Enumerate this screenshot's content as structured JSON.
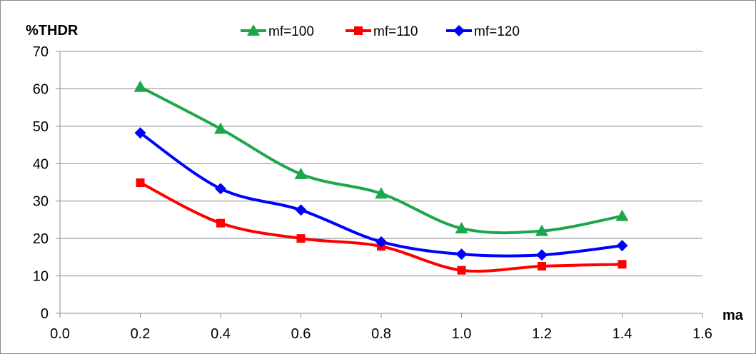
{
  "chart_data": {
    "type": "line",
    "title": "",
    "xlabel": "ma",
    "ylabel": "%THDR",
    "xlim": [
      0.0,
      1.6
    ],
    "ylim": [
      0,
      70
    ],
    "x_ticks": [
      "0.0",
      "0.2",
      "0.4",
      "0.6",
      "0.8",
      "1.0",
      "1.2",
      "1.4",
      "1.6"
    ],
    "y_ticks": [
      "0",
      "10",
      "20",
      "30",
      "40",
      "50",
      "60",
      "70"
    ],
    "grid": "horizontal",
    "legend_position": "top",
    "x": [
      0.2,
      0.4,
      0.6,
      0.8,
      1.0,
      1.2,
      1.4
    ],
    "series": [
      {
        "name": "mf=100",
        "color": "#1ea64a",
        "marker": "triangle",
        "values": [
          60.5,
          49.3,
          37.2,
          32.0,
          22.7,
          22.0,
          26.0
        ]
      },
      {
        "name": "mf=110",
        "color": "#ff0000",
        "marker": "square",
        "values": [
          34.9,
          24.1,
          20.0,
          17.9,
          11.5,
          12.6,
          13.1
        ]
      },
      {
        "name": "mf=120",
        "color": "#0000ff",
        "marker": "diamond",
        "values": [
          48.2,
          33.3,
          27.6,
          19.1,
          15.8,
          15.6,
          18.1
        ]
      }
    ]
  }
}
